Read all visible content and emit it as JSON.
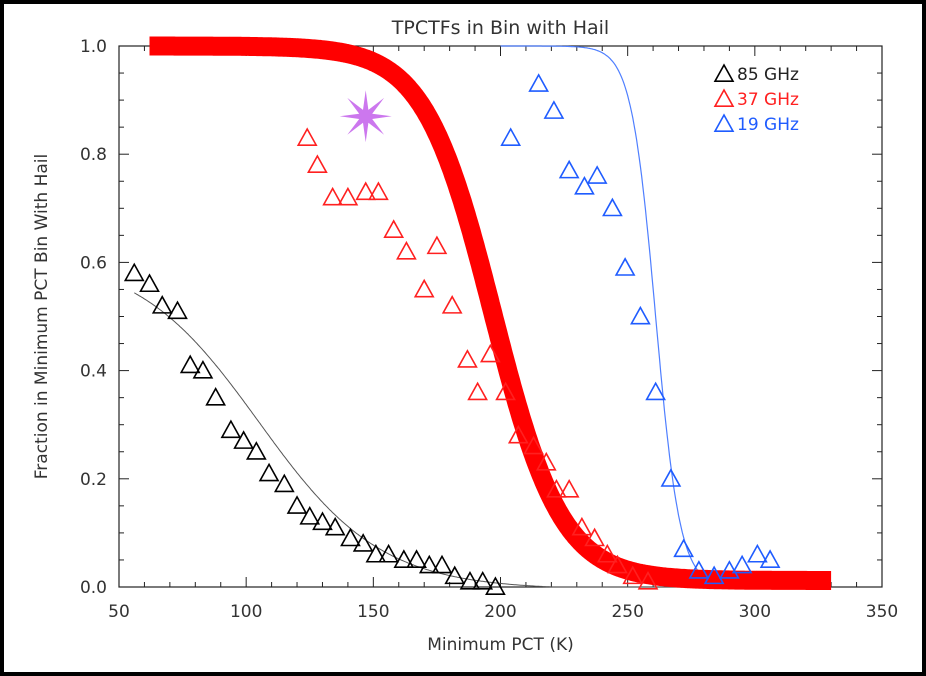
{
  "chart_data": {
    "type": "scatter",
    "title": "TPCTFs in Bin with Hail",
    "xlabel": "Minimum PCT (K)",
    "ylabel": "Fraction in Minimum PCT Bin With Hail",
    "xlim": [
      50,
      350
    ],
    "ylim": [
      0.0,
      1.0
    ],
    "xticks": [
      "50",
      "100",
      "150",
      "200",
      "250",
      "300",
      "350"
    ],
    "yticks": [
      "0.0",
      "0.2",
      "0.4",
      "0.6",
      "0.8",
      "1.0"
    ],
    "legend_position": "top-right",
    "series": [
      {
        "name": "85 GHz",
        "color": "#000000",
        "marker": "triangle",
        "points": [
          [
            56,
            0.58
          ],
          [
            62,
            0.56
          ],
          [
            67,
            0.52
          ],
          [
            73,
            0.51
          ],
          [
            78,
            0.41
          ],
          [
            83,
            0.4
          ],
          [
            88,
            0.35
          ],
          [
            94,
            0.29
          ],
          [
            99,
            0.27
          ],
          [
            104,
            0.25
          ],
          [
            109,
            0.21
          ],
          [
            115,
            0.19
          ],
          [
            120,
            0.15
          ],
          [
            125,
            0.13
          ],
          [
            130,
            0.12
          ],
          [
            135,
            0.11
          ],
          [
            141,
            0.09
          ],
          [
            146,
            0.08
          ],
          [
            151,
            0.06
          ],
          [
            156,
            0.06
          ],
          [
            162,
            0.05
          ],
          [
            167,
            0.05
          ],
          [
            172,
            0.04
          ],
          [
            177,
            0.04
          ],
          [
            182,
            0.02
          ],
          [
            188,
            0.01
          ],
          [
            193,
            0.01
          ],
          [
            198,
            0.0
          ]
        ]
      },
      {
        "name": "37 GHz",
        "color": "#ff2020",
        "marker": "triangle",
        "points": [
          [
            124,
            0.83
          ],
          [
            128,
            0.78
          ],
          [
            134,
            0.72
          ],
          [
            140,
            0.72
          ],
          [
            147,
            0.73
          ],
          [
            152,
            0.73
          ],
          [
            158,
            0.66
          ],
          [
            163,
            0.62
          ],
          [
            170,
            0.55
          ],
          [
            175,
            0.63
          ],
          [
            181,
            0.52
          ],
          [
            187,
            0.42
          ],
          [
            191,
            0.36
          ],
          [
            196,
            0.43
          ],
          [
            202,
            0.36
          ],
          [
            207,
            0.28
          ],
          [
            213,
            0.26
          ],
          [
            218,
            0.23
          ],
          [
            222,
            0.18
          ],
          [
            227,
            0.18
          ],
          [
            232,
            0.11
          ],
          [
            237,
            0.09
          ],
          [
            242,
            0.06
          ],
          [
            246,
            0.04
          ],
          [
            252,
            0.02
          ],
          [
            258,
            0.01
          ]
        ]
      },
      {
        "name": "19 GHz",
        "color": "#1f5cff",
        "marker": "triangle",
        "points": [
          [
            204,
            0.83
          ],
          [
            215,
            0.93
          ],
          [
            221,
            0.88
          ],
          [
            227,
            0.77
          ],
          [
            233,
            0.74
          ],
          [
            238,
            0.76
          ],
          [
            244,
            0.7
          ],
          [
            249,
            0.59
          ],
          [
            255,
            0.5
          ],
          [
            261,
            0.36
          ],
          [
            267,
            0.2
          ],
          [
            272,
            0.07
          ],
          [
            278,
            0.03
          ],
          [
            284,
            0.02
          ],
          [
            290,
            0.03
          ],
          [
            295,
            0.04
          ],
          [
            301,
            0.06
          ],
          [
            306,
            0.05
          ]
        ]
      }
    ],
    "fits": [
      {
        "series": "85 GHz",
        "color": "#555555",
        "kind": "sigmoid-decay",
        "x_range": [
          56,
          330
        ]
      },
      {
        "series": "19 GHz",
        "color": "#4f7fff",
        "kind": "logistic",
        "center": 261,
        "width": 4.8,
        "x_range": [
          200,
          330
        ]
      },
      {
        "series": "overlay",
        "color": "#ff0000",
        "kind": "logistic",
        "center": 197,
        "width": 13.5,
        "x_range": [
          62,
          330
        ]
      }
    ],
    "annotation": {
      "shape": "star",
      "color": "#cc77ee",
      "x": 147,
      "y": 0.87
    }
  }
}
